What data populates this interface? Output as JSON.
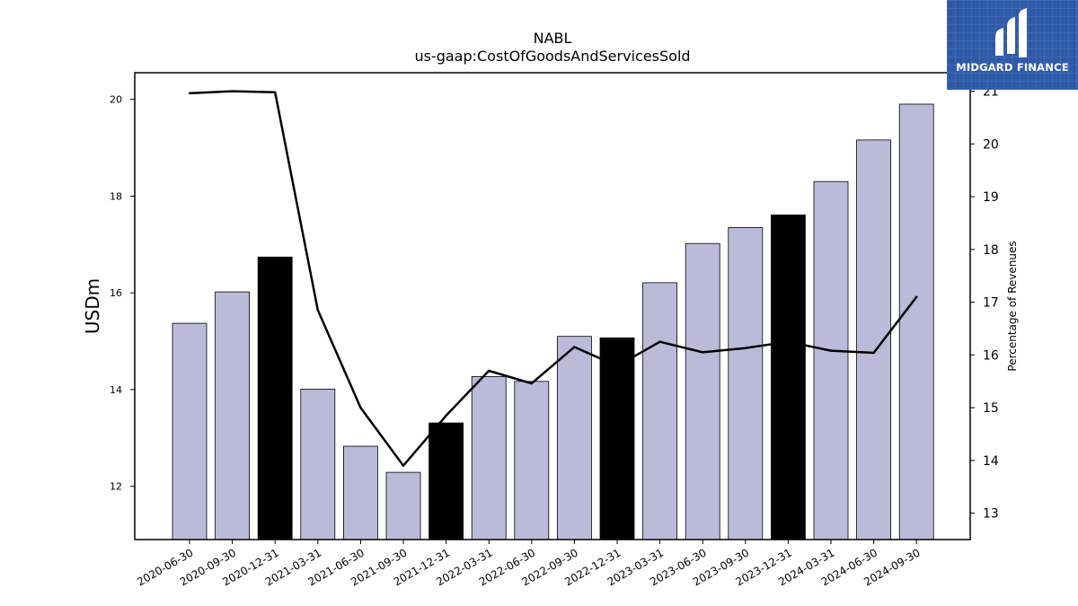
{
  "chart_data": {
    "type": "bar+line",
    "title": "NABL",
    "subtitle": "us-gaap:CostOfGoodsAndServicesSold",
    "ylabel": "USDm",
    "y2label": "Percentage of Revenues",
    "ylim": [
      10.9,
      20.55
    ],
    "y2lim": [
      12.5,
      21.35
    ],
    "yticks": [
      12,
      14,
      16,
      18,
      20
    ],
    "y2ticks": [
      13,
      14,
      15,
      16,
      17,
      18,
      19,
      20,
      21
    ],
    "categories": [
      "2020-06-30",
      "2020-09-30",
      "2020-12-31",
      "2021-03-31",
      "2021-06-30",
      "2021-09-30",
      "2021-12-31",
      "2022-03-31",
      "2022-06-30",
      "2022-09-30",
      "2022-12-31",
      "2023-03-31",
      "2023-06-30",
      "2023-09-30",
      "2023-12-31",
      "2024-03-31",
      "2024-06-30",
      "2024-09-30"
    ],
    "series": [
      {
        "type": "bar",
        "axis": "left",
        "values": [
          15.37,
          16.02,
          16.74,
          14.01,
          12.83,
          12.29,
          13.31,
          14.27,
          14.17,
          15.1,
          15.07,
          16.21,
          17.02,
          17.35,
          17.61,
          18.3,
          19.16,
          19.9
        ],
        "colors": [
          "#bcbad9",
          "#bcbad9",
          "#000000",
          "#bcbad9",
          "#bcbad9",
          "#bcbad9",
          "#000000",
          "#bcbad9",
          "#bcbad9",
          "#bcbad9",
          "#000000",
          "#bcbad9",
          "#bcbad9",
          "#bcbad9",
          "#000000",
          "#bcbad9",
          "#bcbad9",
          "#bcbad9"
        ]
      },
      {
        "type": "line",
        "axis": "right",
        "values": [
          20.96,
          21.0,
          20.98,
          16.85,
          15.0,
          13.9,
          14.85,
          15.7,
          15.46,
          16.15,
          15.79,
          16.25,
          16.05,
          16.13,
          16.25,
          16.08,
          16.04,
          17.1
        ],
        "color": "#000000"
      }
    ],
    "grid": false
  },
  "branding": {
    "logo_text": "MIDGARD FINANCE",
    "logo_color": "#2d5aa8"
  }
}
